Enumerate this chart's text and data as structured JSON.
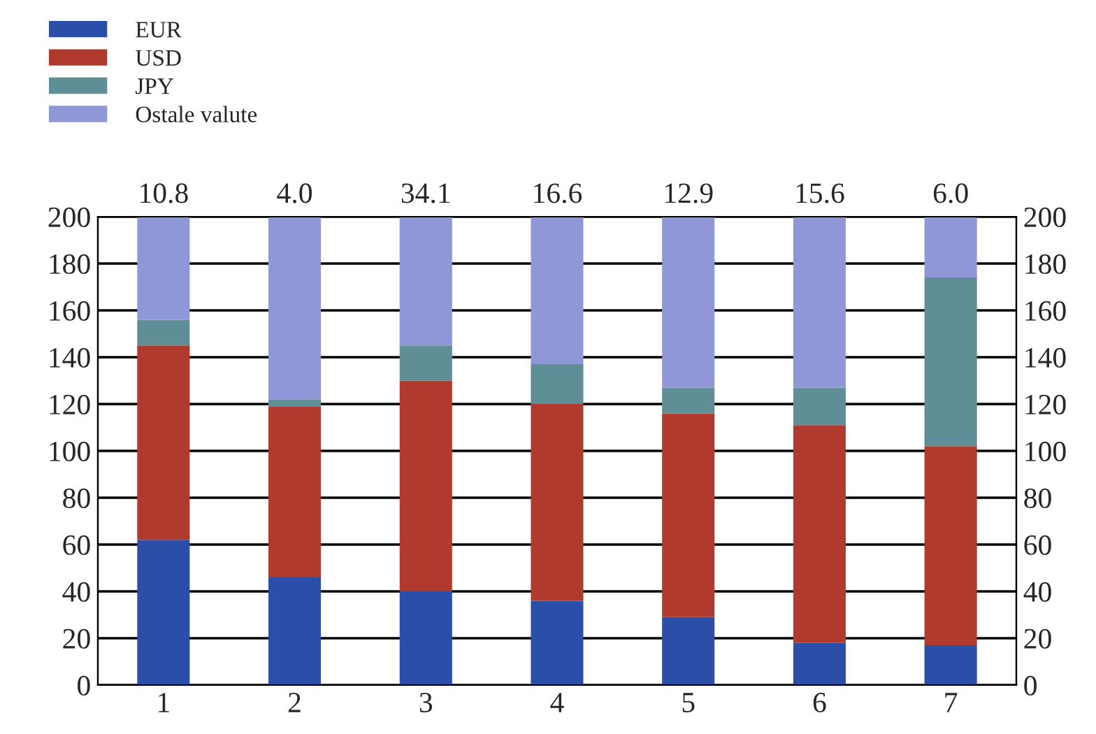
{
  "chart_data": {
    "type": "bar",
    "stacked": true,
    "categories": [
      "1",
      "2",
      "3",
      "4",
      "5",
      "6",
      "7"
    ],
    "series": [
      {
        "name": "EUR",
        "color": "#2b4ea8",
        "values": [
          62,
          46,
          40,
          36,
          29,
          18,
          17
        ]
      },
      {
        "name": "USD",
        "color": "#b03a2e",
        "values": [
          83,
          73,
          90,
          84,
          87,
          93,
          85
        ]
      },
      {
        "name": "JPY",
        "color": "#5f8e96",
        "values": [
          11,
          3,
          15,
          17,
          11,
          16,
          72
        ]
      },
      {
        "name": "Ostale valute",
        "color": "#8f97d6",
        "values": [
          44,
          78,
          55,
          63,
          73,
          73,
          26
        ]
      }
    ],
    "ylim": [
      0,
      200
    ],
    "yticks": [
      0,
      20,
      40,
      60,
      80,
      100,
      120,
      140,
      160,
      180,
      200
    ],
    "y2lim": [
      0,
      200
    ],
    "y2ticks": [
      0,
      20,
      40,
      60,
      80,
      100,
      120,
      140,
      160,
      180,
      200
    ],
    "grid": true,
    "legend": "top left",
    "annotations": [
      "10.8",
      "4.0",
      "34.1",
      "16.6",
      "12.9",
      "15.6",
      "6.0"
    ]
  }
}
